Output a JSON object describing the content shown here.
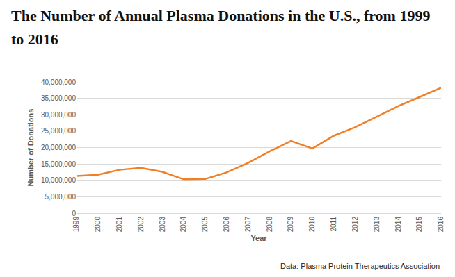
{
  "chart_data": {
    "type": "line",
    "title": "The Number of Annual Plasma Donations in the U.S., from 1999 to 2016",
    "x_label": "Year",
    "y_label": "Number of Donations",
    "source": "Data: Plasma Protein Therapeutics Association",
    "categories": [
      "1999",
      "2000",
      "2001",
      "2002",
      "2003",
      "2004",
      "2005",
      "2006",
      "2007",
      "2008",
      "2009",
      "2010",
      "2011",
      "2012",
      "2013",
      "2014",
      "2015",
      "2016"
    ],
    "values": [
      11300000,
      11700000,
      13200000,
      13800000,
      12600000,
      10300000,
      10400000,
      12400000,
      15300000,
      18800000,
      22000000,
      19700000,
      23600000,
      26200000,
      29400000,
      32600000,
      35400000,
      38200000
    ],
    "color": "#f07f26",
    "ylim": [
      0,
      40000000
    ],
    "yticks": [
      0,
      {
        "value": 5000000,
        "label": "5,000,000"
      },
      {
        "value": 10000000,
        "label": "10,000,000"
      },
      {
        "value": 15000000,
        "label": "15,000,000"
      },
      {
        "value": 20000000,
        "label": "20,000,000"
      },
      {
        "value": 25000000,
        "label": "25,000,000"
      },
      {
        "value": 30000000,
        "label": "30,000,000"
      },
      {
        "value": 35000000,
        "label": "35,000,000"
      },
      {
        "value": 40000000,
        "label": "40,000,000"
      }
    ],
    "grid": true
  }
}
